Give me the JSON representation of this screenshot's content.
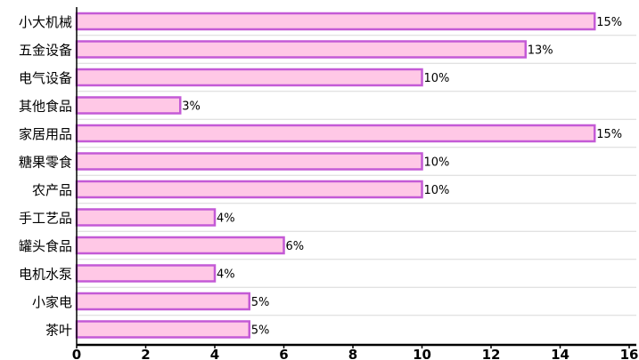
{
  "chart_data": {
    "type": "bar",
    "orientation": "horizontal",
    "title": "",
    "xlabel": "",
    "ylabel": "",
    "xlim": [
      0,
      16
    ],
    "x_ticks": [
      0,
      2,
      4,
      6,
      8,
      10,
      12,
      14,
      16
    ],
    "grid": true,
    "categories": [
      "小大机械",
      "五金设备",
      "电气设备",
      "其他食品",
      "家居用品",
      "糖果零食",
      "农产品",
      "手工艺品",
      "罐头食品",
      "电机水泵",
      "小家电",
      "茶叶"
    ],
    "values": [
      15,
      13,
      10,
      3,
      15,
      10,
      10,
      4,
      6,
      4,
      5,
      5
    ],
    "value_labels": [
      "15%",
      "13%",
      "10%",
      "3%",
      "15%",
      "10%",
      "10%",
      "4%",
      "6%",
      "4%",
      "5%",
      "5%"
    ],
    "bar_fill": "#ffc8e6",
    "bar_stroke": "#c45ad6",
    "grid_color": "#d8d8d8",
    "axis_color": "#000000"
  }
}
